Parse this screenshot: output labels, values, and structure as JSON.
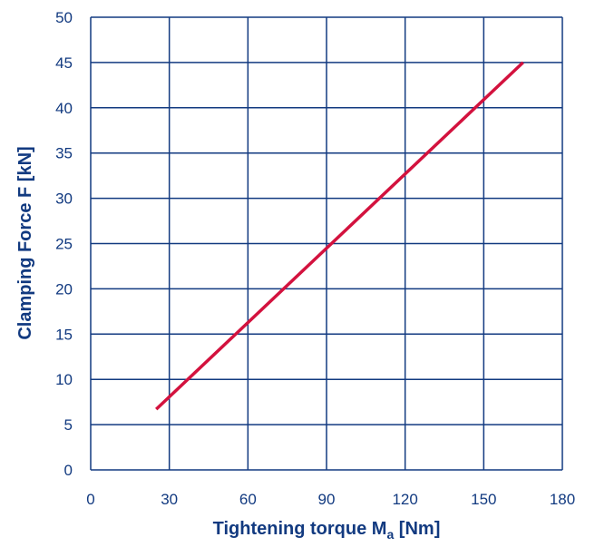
{
  "chart_data": {
    "type": "line",
    "xlabel": "Tightening torque M",
    "xlabel_subscript": "a",
    "xlabel_unit": " [Nm]",
    "ylabel": "Clamping Force F [kN]",
    "xlim": [
      0,
      180
    ],
    "ylim": [
      0,
      50
    ],
    "x_ticks": [
      0,
      30,
      60,
      90,
      120,
      150,
      180
    ],
    "y_ticks": [
      0,
      5,
      10,
      15,
      20,
      25,
      30,
      35,
      40,
      45,
      50
    ],
    "grid": true,
    "series": [
      {
        "values": [
          {
            "x": 25,
            "y": 6.7
          },
          {
            "x": 165,
            "y": 45
          }
        ]
      }
    ],
    "colors": {
      "line": "#d3123e",
      "grid": "#123a80",
      "text": "#123a80"
    }
  }
}
